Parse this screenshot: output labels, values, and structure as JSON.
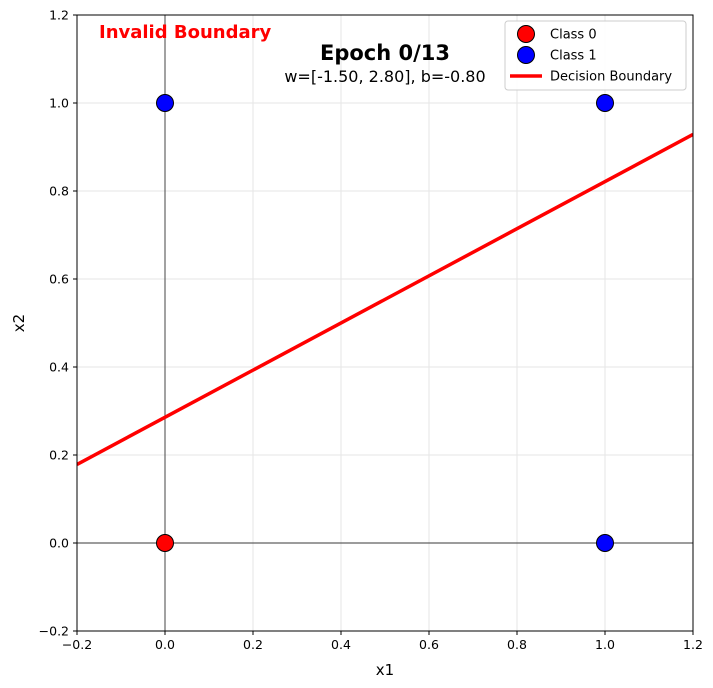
{
  "chart_data": {
    "type": "scatter",
    "title": "Epoch 0/13",
    "subtitle": "w=[-1.50, 2.80], b=-0.80",
    "status_annotation": "Invalid Boundary",
    "status_color": "#ff0000",
    "xlabel": "x1",
    "ylabel": "x2",
    "xlim": [
      -0.2,
      1.2
    ],
    "ylim": [
      -0.2,
      1.2
    ],
    "xticks": [
      "−0.2",
      "0.0",
      "0.2",
      "0.4",
      "0.6",
      "0.8",
      "1.0",
      "1.2"
    ],
    "yticks": [
      "−0.2",
      "0.0",
      "0.2",
      "0.4",
      "0.6",
      "0.8",
      "1.0",
      "1.2"
    ],
    "xtick_values": [
      -0.2,
      0.0,
      0.2,
      0.4,
      0.6,
      0.8,
      1.0,
      1.2
    ],
    "ytick_values": [
      -0.2,
      0.0,
      0.2,
      0.4,
      0.6,
      0.8,
      1.0,
      1.2
    ],
    "grid": true,
    "reference_lines": {
      "x": 0,
      "y": 0
    },
    "legend_position": "top-right",
    "series": [
      {
        "name": "Class 0",
        "color": "#ff0000",
        "points": [
          {
            "x": 0,
            "y": 0
          }
        ]
      },
      {
        "name": "Class 1",
        "color": "#0000ff",
        "points": [
          {
            "x": 0,
            "y": 1
          },
          {
            "x": 1,
            "y": 1
          },
          {
            "x": 1,
            "y": 0
          }
        ]
      }
    ],
    "boundary": {
      "name": "Decision Boundary",
      "color": "#ff0000",
      "weights": [
        -1.5,
        2.8
      ],
      "bias": -0.8
    }
  }
}
